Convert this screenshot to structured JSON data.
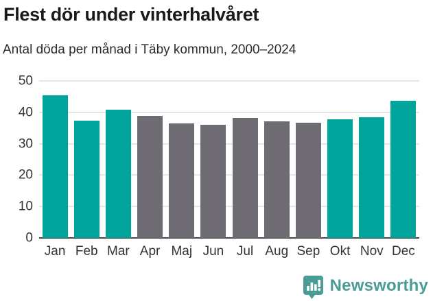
{
  "header": {
    "title": "Flest dör under vinterhalvåret",
    "subtitle": "Antal döda per månad i Täby kommun, 2000–2024"
  },
  "chart_data": {
    "type": "bar",
    "title": "Flest dör under vinterhalvåret",
    "subtitle": "Antal döda per månad i Täby kommun, 2000–2024",
    "categories": [
      "Jan",
      "Feb",
      "Mar",
      "Apr",
      "Maj",
      "Jun",
      "Jul",
      "Aug",
      "Sep",
      "Okt",
      "Nov",
      "Dec"
    ],
    "values": [
      45.4,
      37.3,
      40.9,
      38.9,
      36.4,
      36.0,
      38.3,
      37.2,
      36.6,
      37.7,
      38.5,
      43.7
    ],
    "bar_color_keys": [
      "highlight",
      "highlight",
      "highlight",
      "muted",
      "muted",
      "muted",
      "muted",
      "muted",
      "muted",
      "highlight",
      "highlight",
      "highlight"
    ],
    "colors": {
      "highlight": "#00a49a",
      "muted": "#6e6c72"
    },
    "xlabel": "",
    "ylabel": "",
    "ylim": [
      0,
      50
    ],
    "yticks": [
      0,
      10,
      20,
      30,
      40,
      50
    ],
    "grid": true,
    "legend": "none"
  },
  "footer": {
    "brand": "Newsworthy",
    "logo_color": "#4a9c96"
  }
}
